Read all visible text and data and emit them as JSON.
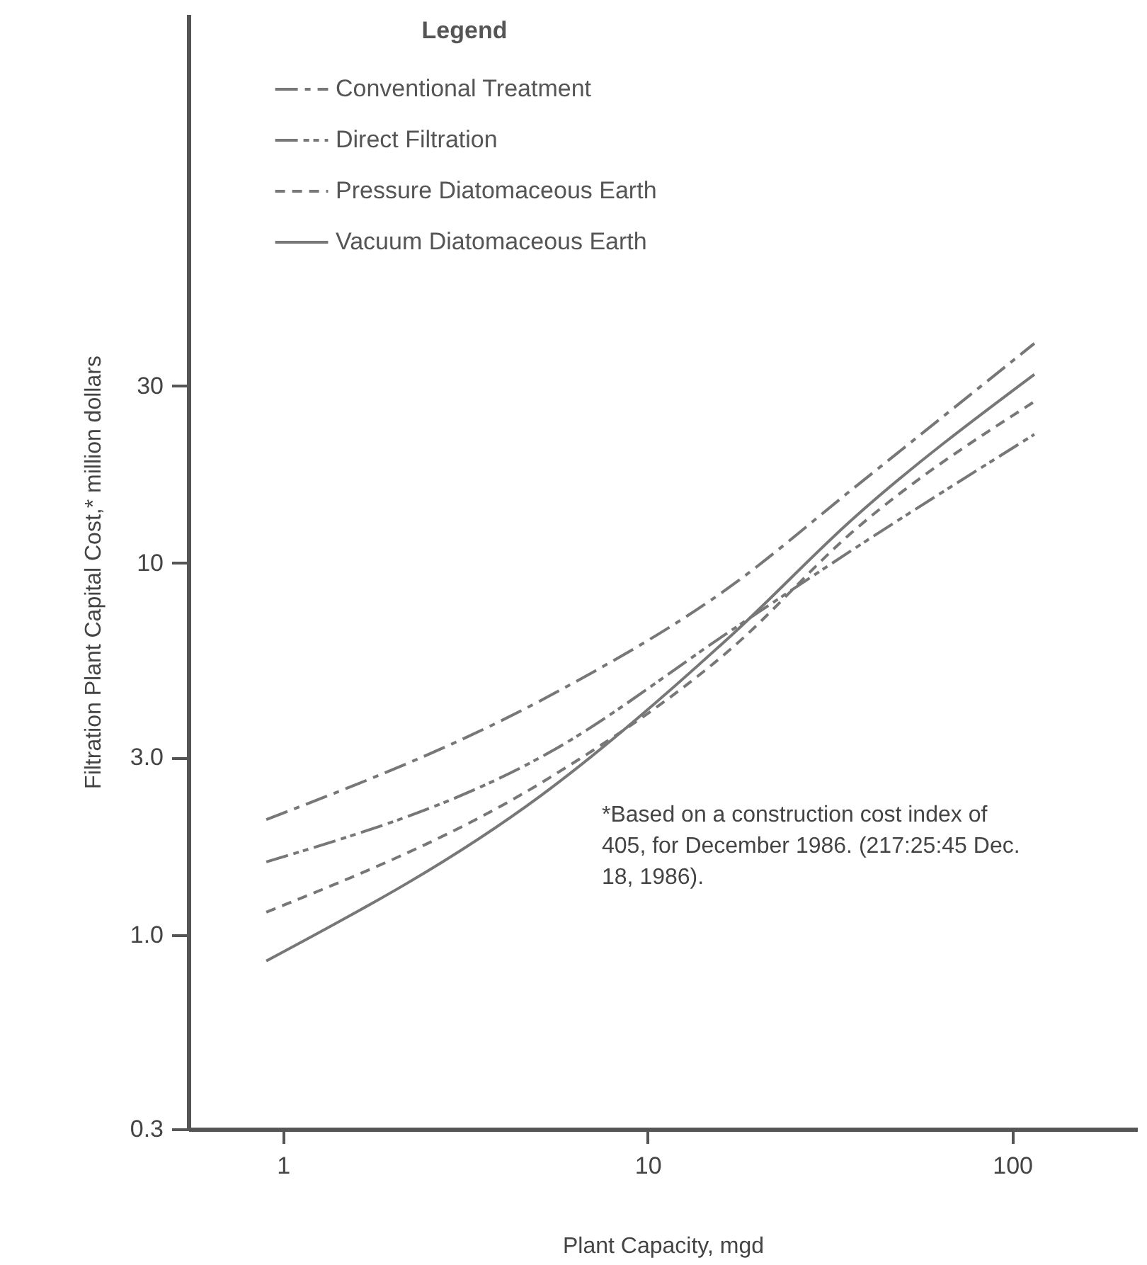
{
  "chart_data": {
    "type": "line",
    "xlabel": "Plant Capacity, mgd",
    "ylabel": "Filtration Plant Capital Cost,* million dollars",
    "legend_title": "Legend",
    "x": [
      0.9,
      5.4,
      17,
      36.7,
      115
    ],
    "series": [
      {
        "name": "Conventional Treatment",
        "color": "#777777",
        "line_style": "dashed",
        "values": [
          2.04,
          4.4,
          8.7,
          15.9,
          39
        ]
      },
      {
        "name": "Direct Filtration",
        "color": "#777777",
        "line_style": "dashed",
        "values": [
          1.57,
          3.1,
          6.6,
          10.9,
          22.2
        ]
      },
      {
        "name": "Pressure Diatomaceous Earth",
        "color": "#777777",
        "line_style": "dashed",
        "values": [
          1.15,
          2.65,
          5.9,
          12.2,
          27.2
        ]
      },
      {
        "name": "Vacuum Diatomaceous Earth",
        "color": "#777777",
        "line_style": "solid",
        "values": [
          0.85,
          2.47,
          6.4,
          13.2,
          32.2
        ]
      }
    ],
    "log": "xy",
    "xlim": [
      0.55,
      220
    ],
    "xticks": [
      1,
      10,
      100
    ],
    "ylim": [
      0.3,
      300
    ],
    "yticks": [
      0.3,
      {
        "value": 1,
        "label": "1.0"
      },
      {
        "value": 3,
        "label": "3.0"
      },
      10,
      30
    ],
    "grid": false,
    "legend": "top",
    "marker": "none",
    "annotations": [
      "*Based on a construction cost index of 405, for December 1986. (217:25:45 Dec. 18, 1986)."
    ]
  }
}
